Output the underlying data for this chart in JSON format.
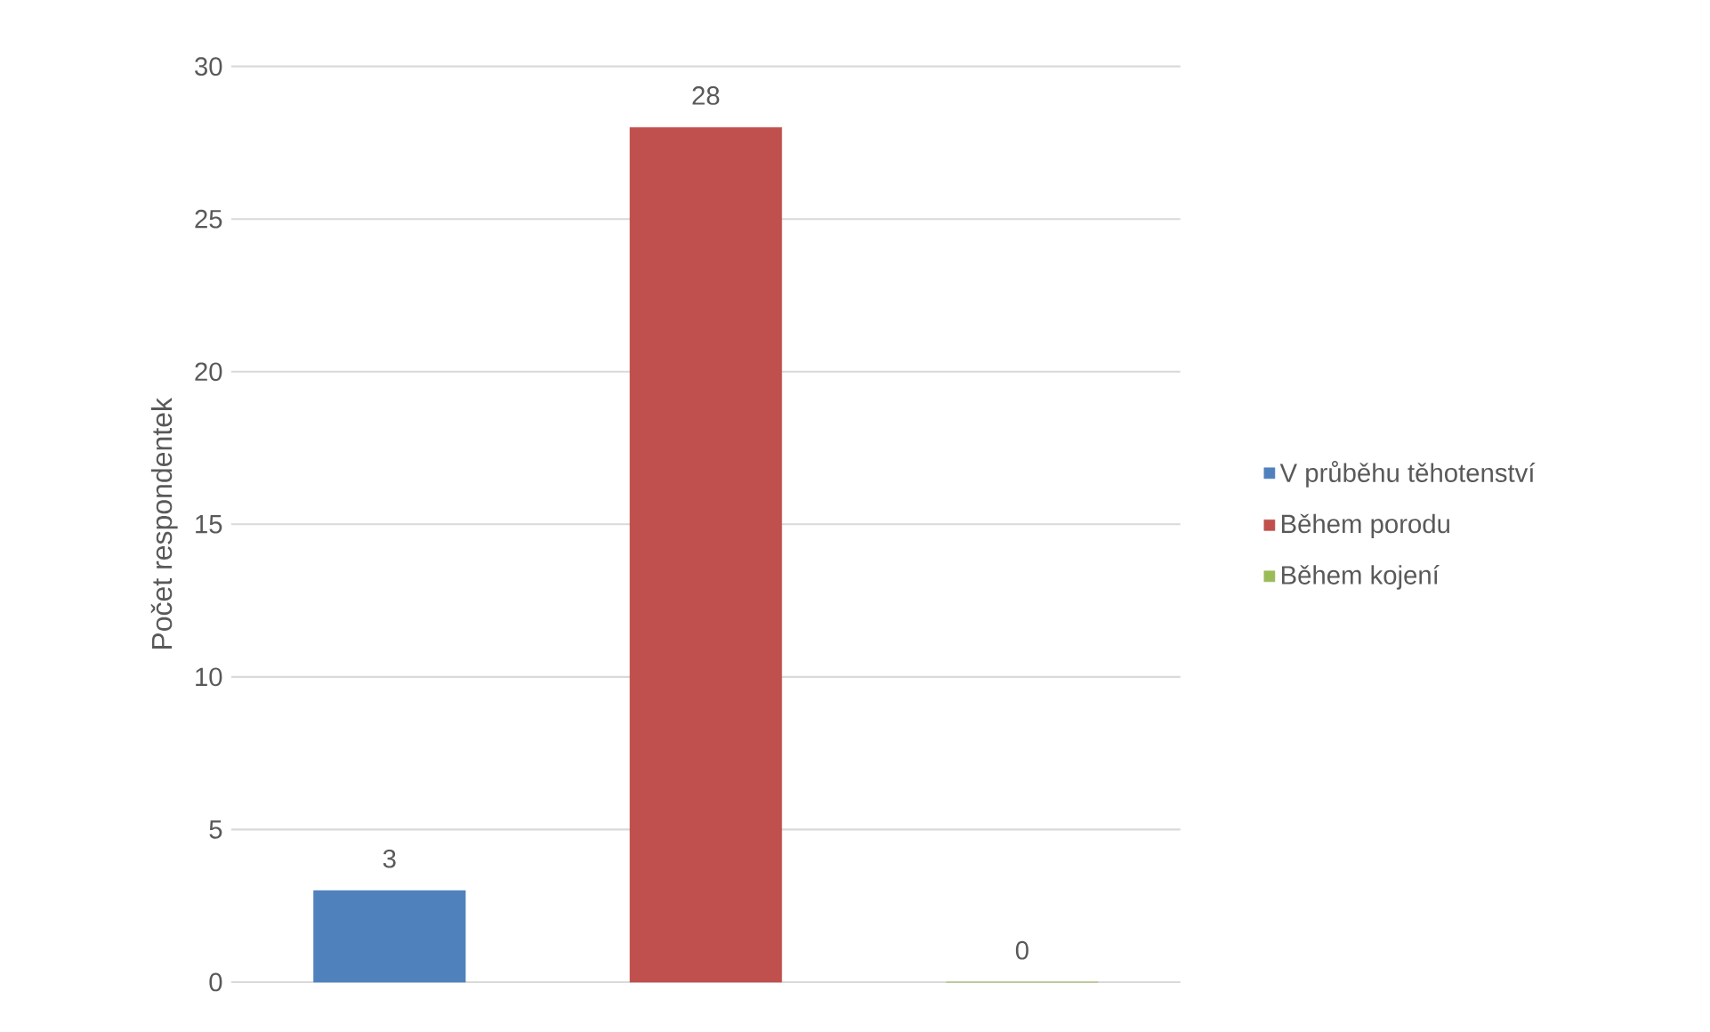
{
  "chart_data": {
    "type": "bar",
    "ylabel": "Počet respondentek",
    "categories": [
      null,
      null,
      null
    ],
    "series": [
      {
        "name": "V průběhu těhotenství",
        "color": "#4f81bd",
        "values": [
          3,
          null,
          null
        ]
      },
      {
        "name": "Během porodu",
        "color": "#c0504d",
        "values": [
          null,
          28,
          null
        ]
      },
      {
        "name": "Během kojení",
        "color": "#9bbb59",
        "values": [
          null,
          null,
          0
        ]
      }
    ],
    "ylim": [
      0,
      30
    ],
    "yticks": [
      0,
      5,
      10,
      15,
      20,
      25,
      30
    ],
    "grid": "y",
    "legend": "right",
    "data_labels": true
  }
}
